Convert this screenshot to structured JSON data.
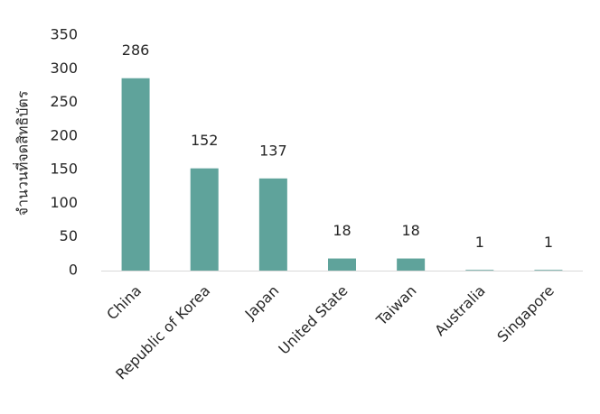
{
  "chart_data": {
    "type": "bar",
    "y_label": "จำนวนที่จดสิทธิบัตร",
    "categories": [
      "China",
      "Republic of Korea",
      "Japan",
      "United State",
      "Taiwan",
      "Australia",
      "Singapore"
    ],
    "values": [
      286,
      152,
      137,
      18,
      18,
      1,
      1
    ],
    "color": "#5fa39b",
    "ylim": [
      0,
      350
    ],
    "yticks": [
      0,
      50,
      100,
      150,
      200,
      250,
      300,
      350
    ],
    "grid": false
  }
}
